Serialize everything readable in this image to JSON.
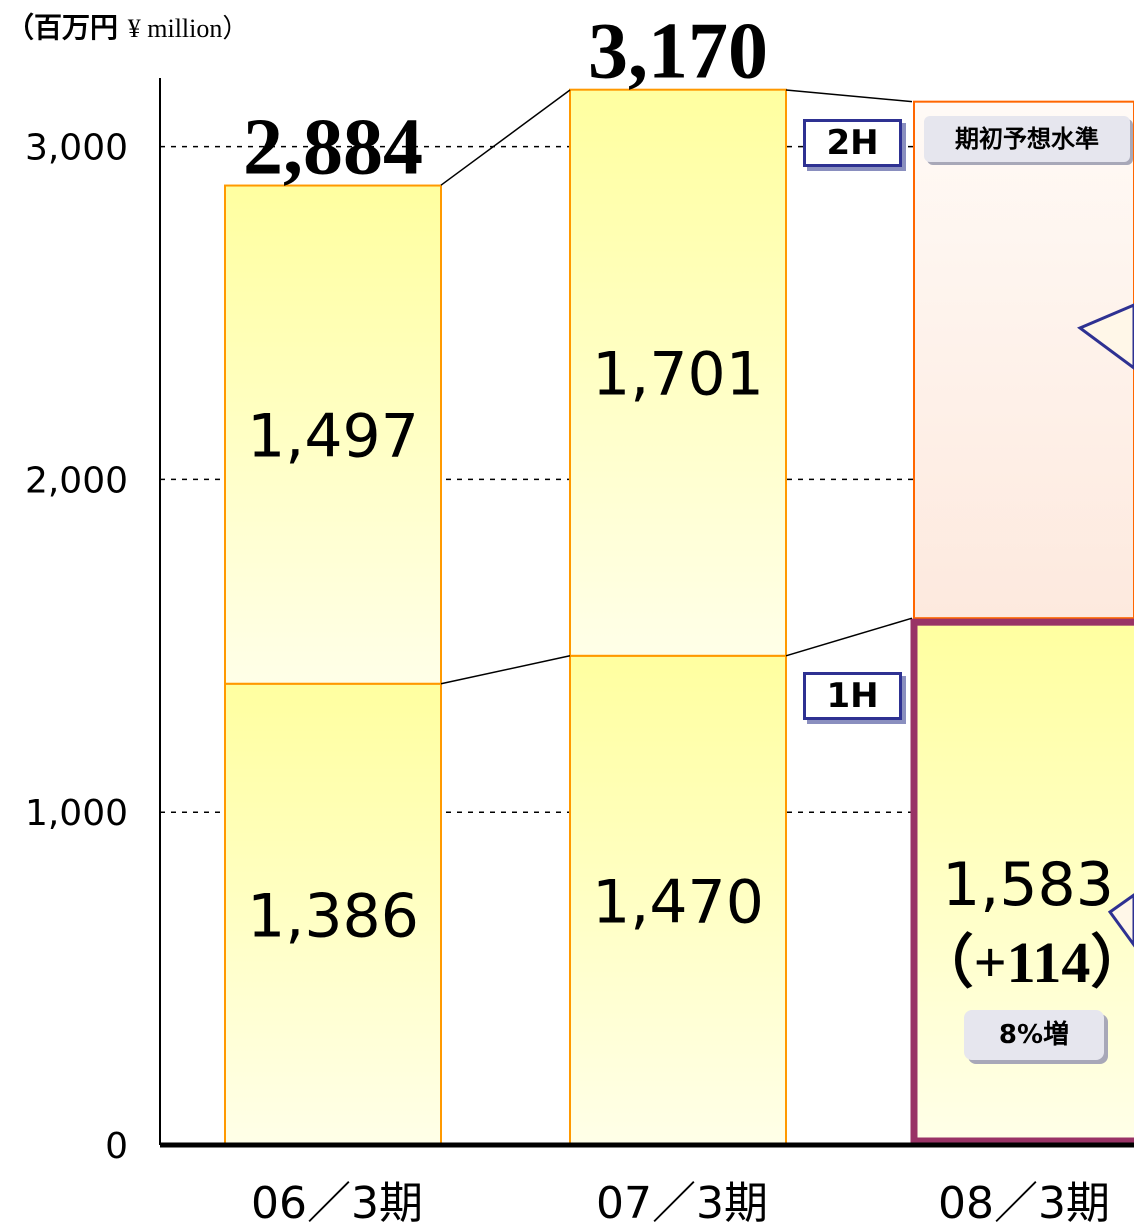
{
  "unit": {
    "main": "（百万円",
    "sub": "¥ million）"
  },
  "tags": {
    "second_half": "2H",
    "first_half": "1H"
  },
  "forecast_note": "期初予想水準",
  "growth_note": "8%増",
  "chart_data": {
    "type": "bar",
    "stacked": true,
    "categories": [
      "06／3期",
      "07／3期",
      "08／3期"
    ],
    "series": [
      {
        "name": "1H",
        "values": [
          1386,
          1470,
          1583
        ]
      },
      {
        "name": "2H",
        "values": [
          1497,
          1701,
          null
        ]
      }
    ],
    "segment_labels": {
      "1H": [
        "1,386",
        "1,470",
        "1,583"
      ],
      "2H": [
        "1,497",
        "1,701",
        ""
      ]
    },
    "totals": [
      2884,
      3170,
      null
    ],
    "total_labels": [
      "2,884",
      "3,170",
      ""
    ],
    "forecast_total": 3135,
    "change_label": "（+114）",
    "yticks": [
      0,
      1000,
      2000,
      3000
    ],
    "ytick_labels": [
      "0",
      "1,000",
      "2,000",
      "3,000"
    ],
    "ylim": [
      0,
      3200
    ],
    "grid": true,
    "colors": {
      "bar_fill_top": "#ffff99",
      "bar_fill_bottom": "#ffffe6",
      "bar_border": "#ff9900",
      "highlight_border": "#993366",
      "forecast_fill": "#fdeee0",
      "forecast_border": "#ff6600"
    }
  }
}
